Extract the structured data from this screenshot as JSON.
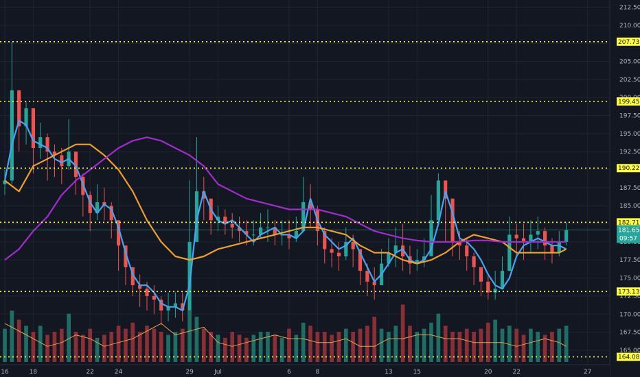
{
  "chart_data": {
    "type": "line",
    "title": "",
    "theme": "dark",
    "ylim": [
      163,
      213.5
    ],
    "y_ticks": [
      "212.50",
      "210.00",
      "207.50",
      "205.00",
      "202.50",
      "200.00",
      "197.50",
      "195.00",
      "192.50",
      "190.00",
      "187.50",
      "185.00",
      "182.50",
      "180.00",
      "177.50",
      "175.00",
      "172.50",
      "170.00",
      "167.50",
      "165.00"
    ],
    "x_ticks": [
      {
        "label": "16",
        "day": 0
      },
      {
        "label": "18",
        "day": 2
      },
      {
        "label": "22",
        "day": 6
      },
      {
        "label": "24",
        "day": 8
      },
      {
        "label": "29",
        "day": 13
      },
      {
        "label": "Jul",
        "day": 15
      },
      {
        "label": "6",
        "day": 20
      },
      {
        "label": "8",
        "day": 22
      },
      {
        "label": "13",
        "day": 27
      },
      {
        "label": "15",
        "day": 29
      },
      {
        "label": "20",
        "day": 34
      },
      {
        "label": "22",
        "day": 36
      },
      {
        "label": "27",
        "day": 41
      }
    ],
    "horizontal_levels": [
      207.73,
      199.45,
      190.22,
      182.71,
      173.13,
      164.08
    ],
    "level_labels": [
      "207.73",
      "199.45",
      "190.22",
      "182.71",
      "173.13",
      "164.08"
    ],
    "last_price": {
      "value": 181.65,
      "label": "181.65",
      "countdown": "09:57"
    },
    "series": [
      {
        "role": "fast moving average",
        "color": "#42a5f5",
        "x": [
          0,
          0.5,
          1,
          1.5,
          2,
          2.5,
          3,
          3.5,
          4,
          4.5,
          5,
          5.5,
          6,
          6.5,
          7,
          7.5,
          8,
          8.5,
          9,
          9.5,
          10,
          10.5,
          11,
          11.5,
          12,
          12.5,
          13,
          13.5,
          14,
          14.5,
          15,
          15.5,
          16,
          16.5,
          17,
          17.5,
          18,
          18.5,
          19,
          19.5,
          20,
          20.5,
          21,
          21.5,
          22,
          22.5,
          23,
          23.5,
          24,
          24.5,
          25,
          25.5,
          26,
          26.5,
          27,
          27.5,
          28,
          28.5,
          29,
          29.5,
          30,
          30.5,
          31,
          31.5,
          32,
          32.5,
          33,
          33.5,
          34,
          34.5,
          35,
          35.5,
          36,
          36.5,
          37,
          37.5,
          38,
          38.5,
          39,
          39.5
        ],
        "values": [
          188.5,
          193.5,
          196.8,
          196.2,
          194.0,
          193.5,
          193.0,
          191.5,
          191.0,
          191.5,
          190.5,
          188.0,
          185.5,
          184.0,
          185.2,
          184.5,
          182.0,
          178.5,
          175.5,
          174.0,
          174.0,
          173.0,
          171.5,
          171.0,
          171.0,
          170.5,
          174.0,
          183.0,
          187.0,
          184.5,
          183.0,
          182.5,
          183.0,
          182.0,
          181.0,
          180.0,
          181.0,
          181.5,
          182.0,
          181.0,
          181.0,
          180.5,
          181.5,
          186.0,
          183.0,
          181.0,
          180.0,
          179.0,
          179.5,
          180.5,
          178.5,
          176.5,
          174.5,
          175.5,
          177.0,
          178.5,
          179.0,
          177.5,
          177.0,
          177.5,
          179.0,
          182.5,
          187.0,
          184.0,
          180.5,
          180.0,
          179.0,
          177.5,
          175.5,
          174.0,
          173.5,
          175.0,
          178.0,
          179.5,
          180.0,
          180.5,
          180.0,
          179.5,
          179.5,
          179.0
        ]
      },
      {
        "role": "medium moving average",
        "color": "#f0a029",
        "x": [
          0,
          1,
          2,
          3,
          4,
          5,
          6,
          7,
          8,
          9,
          10,
          11,
          12,
          13,
          14,
          15,
          16,
          17,
          18,
          19,
          20,
          21,
          22,
          23,
          24,
          25,
          26,
          27,
          28,
          29,
          30,
          31,
          32,
          33,
          34,
          35,
          36,
          37,
          38,
          39,
          39.5
        ],
        "values": [
          188.5,
          187.0,
          190.5,
          191.5,
          192.5,
          193.5,
          193.5,
          192.0,
          190.0,
          187.0,
          183.0,
          180.0,
          178.0,
          177.5,
          178.0,
          179.0,
          179.5,
          180.0,
          180.5,
          181.0,
          181.5,
          182.0,
          182.0,
          181.5,
          181.0,
          179.5,
          178.5,
          178.5,
          177.5,
          177.0,
          177.5,
          178.5,
          180.0,
          181.0,
          180.5,
          180.0,
          178.5,
          178.5,
          178.5,
          178.5,
          179.0
        ]
      },
      {
        "role": "slow moving average",
        "color": "#a32bd0",
        "x": [
          0,
          1,
          2,
          3,
          4,
          5,
          6,
          7,
          8,
          9,
          10,
          11,
          12,
          13,
          14,
          15,
          16,
          17,
          18,
          19,
          20,
          21,
          22,
          23,
          24,
          25,
          26,
          27,
          28,
          29,
          30,
          31,
          32,
          33,
          34,
          35,
          36,
          37,
          38,
          39,
          39.5
        ],
        "values": [
          177.5,
          179.0,
          181.5,
          183.5,
          186.5,
          188.5,
          190.0,
          191.5,
          193.0,
          194.0,
          194.5,
          194.0,
          193.0,
          192.0,
          190.5,
          188.0,
          187.0,
          186.0,
          185.5,
          185.0,
          184.5,
          184.5,
          184.5,
          184.0,
          183.5,
          182.5,
          181.5,
          181.0,
          180.5,
          180.2,
          180.0,
          180.0,
          180.0,
          180.2,
          180.2,
          180.0,
          180.0,
          180.0,
          180.0,
          180.0,
          180.0
        ]
      },
      {
        "role": "volume average",
        "color": "#e8a054",
        "x": [
          0,
          1,
          2,
          3,
          4,
          5,
          6,
          7,
          8,
          9,
          10,
          11,
          12,
          13,
          14,
          15,
          16,
          17,
          18,
          19,
          20,
          21,
          22,
          23,
          24,
          25,
          26,
          27,
          28,
          29,
          30,
          31,
          32,
          33,
          34,
          35,
          36,
          37,
          38,
          39,
          39.5
        ],
        "values": [
          169.5,
          168.5,
          167.5,
          166.5,
          167.0,
          168.0,
          167.5,
          166.5,
          167.0,
          167.5,
          168.5,
          169.5,
          168.0,
          168.5,
          169.0,
          167.0,
          166.5,
          167.0,
          167.5,
          168.0,
          167.5,
          167.5,
          167.0,
          167.0,
          167.5,
          166.5,
          166.5,
          167.5,
          167.5,
          168.0,
          168.0,
          167.5,
          167.5,
          167.0,
          167.0,
          167.0,
          166.5,
          167.0,
          167.5,
          167.0,
          166.5
        ]
      }
    ],
    "candles": {
      "x": [
        0,
        0.5,
        1,
        1.5,
        2,
        2.5,
        3,
        3.5,
        4,
        4.5,
        5,
        5.5,
        6,
        6.5,
        7,
        7.5,
        8,
        8.5,
        9,
        9.5,
        10,
        10.5,
        11,
        11.5,
        12,
        12.5,
        13,
        13.5,
        14,
        14.5,
        15,
        15.5,
        16,
        16.5,
        17,
        17.5,
        18,
        18.5,
        19,
        19.5,
        20,
        20.5,
        21,
        21.5,
        22,
        22.5,
        23,
        23.5,
        24,
        24.5,
        25,
        25.5,
        26,
        26.5,
        27,
        27.5,
        28,
        28.5,
        29,
        29.5,
        30,
        30.5,
        31,
        31.5,
        32,
        32.5,
        33,
        33.5,
        34,
        34.5,
        35,
        35.5,
        36,
        36.5,
        37,
        37.5,
        38,
        38.5,
        39,
        39.5
      ],
      "close": [
        188.5,
        201.0,
        196.0,
        198.5,
        193.0,
        194.5,
        192.5,
        192.0,
        190.5,
        192.5,
        189.0,
        186.5,
        184.0,
        185.5,
        185.0,
        183.0,
        179.5,
        176.5,
        174.0,
        173.5,
        172.5,
        172.0,
        170.5,
        171.0,
        171.5,
        170.5,
        180.0,
        187.0,
        186.0,
        183.0,
        183.5,
        182.5,
        182.0,
        181.5,
        181.0,
        181.0,
        182.0,
        182.0,
        181.0,
        181.0,
        180.5,
        181.5,
        185.5,
        184.5,
        181.5,
        179.0,
        178.5,
        178.0,
        180.0,
        179.0,
        176.0,
        174.5,
        174.0,
        177.0,
        178.5,
        179.5,
        178.0,
        177.0,
        177.5,
        178.0,
        183.0,
        188.5,
        186.0,
        180.0,
        179.5,
        178.0,
        176.5,
        174.5,
        173.0,
        173.5,
        176.0,
        181.0,
        180.5,
        180.0,
        181.0,
        181.5,
        179.5,
        178.5,
        180.0,
        181.6
      ],
      "high": [
        190.0,
        207.7,
        201.0,
        199.5,
        197.5,
        196.5,
        195.0,
        193.5,
        193.0,
        197.0,
        191.0,
        189.5,
        187.0,
        188.0,
        187.5,
        185.5,
        183.0,
        178.5,
        176.5,
        175.5,
        174.5,
        174.0,
        172.5,
        173.0,
        173.0,
        173.0,
        188.5,
        194.5,
        189.0,
        185.5,
        185.0,
        184.5,
        184.0,
        183.5,
        183.0,
        183.0,
        184.0,
        184.5,
        183.0,
        183.0,
        183.0,
        183.5,
        189.0,
        188.0,
        185.0,
        182.0,
        180.5,
        180.0,
        182.0,
        181.0,
        178.5,
        177.0,
        176.5,
        179.0,
        180.5,
        182.0,
        182.5,
        179.5,
        179.0,
        180.5,
        186.5,
        189.5,
        188.0,
        182.5,
        181.5,
        180.5,
        178.5,
        176.5,
        175.5,
        176.0,
        178.0,
        183.5,
        182.5,
        182.5,
        183.0,
        183.5,
        182.0,
        180.5,
        181.5,
        182.7
      ],
      "low": [
        186.5,
        188.0,
        192.5,
        193.5,
        189.5,
        191.5,
        188.5,
        189.0,
        188.0,
        190.0,
        186.5,
        183.5,
        181.5,
        183.0,
        183.0,
        180.5,
        176.0,
        174.0,
        172.5,
        171.0,
        170.5,
        170.0,
        168.5,
        169.0,
        169.5,
        169.0,
        171.5,
        180.5,
        183.0,
        181.0,
        181.5,
        181.0,
        180.5,
        180.0,
        179.5,
        179.5,
        180.5,
        180.0,
        179.5,
        179.5,
        179.0,
        180.0,
        181.5,
        182.0,
        179.5,
        177.0,
        176.5,
        176.0,
        177.5,
        176.5,
        174.0,
        172.5,
        172.0,
        174.5,
        176.5,
        176.5,
        176.0,
        175.5,
        176.0,
        176.5,
        180.5,
        184.0,
        180.0,
        178.0,
        177.5,
        176.0,
        174.0,
        172.5,
        172.0,
        172.0,
        173.5,
        177.0,
        178.0,
        177.5,
        178.5,
        179.0,
        177.5,
        177.0,
        178.0,
        179.5
      ]
    },
    "volume": [
      0.55,
      0.85,
      0.7,
      0.6,
      0.5,
      0.6,
      0.45,
      0.5,
      0.55,
      0.8,
      0.5,
      0.45,
      0.55,
      0.4,
      0.45,
      0.5,
      0.6,
      0.55,
      0.65,
      0.5,
      0.6,
      0.55,
      0.5,
      0.45,
      0.5,
      0.55,
      0.85,
      0.75,
      0.55,
      0.5,
      0.45,
      0.4,
      0.5,
      0.45,
      0.4,
      0.45,
      0.5,
      0.5,
      0.45,
      0.4,
      0.55,
      0.45,
      0.65,
      0.6,
      0.5,
      0.5,
      0.45,
      0.5,
      0.55,
      0.5,
      0.55,
      0.6,
      0.75,
      0.55,
      0.5,
      0.6,
      0.95,
      0.6,
      0.5,
      0.55,
      0.65,
      0.8,
      0.6,
      0.5,
      0.5,
      0.55,
      0.5,
      0.55,
      0.65,
      0.7,
      0.55,
      0.6,
      0.55,
      0.45,
      0.55,
      0.5,
      0.45,
      0.5,
      0.55,
      0.6
    ],
    "colors": {
      "background": "#131722",
      "grid": "#1f2431",
      "axis_text": "#b2b5be",
      "up": "#26a69a",
      "down": "#ef5350",
      "volume_up": "#1e6e66",
      "volume_down": "#8a2f36",
      "level_line": "#ffff3b",
      "last_price_line": "#26a69a",
      "last_price_tag": "#26a69a",
      "countdown_tag": "#26a69a"
    }
  }
}
